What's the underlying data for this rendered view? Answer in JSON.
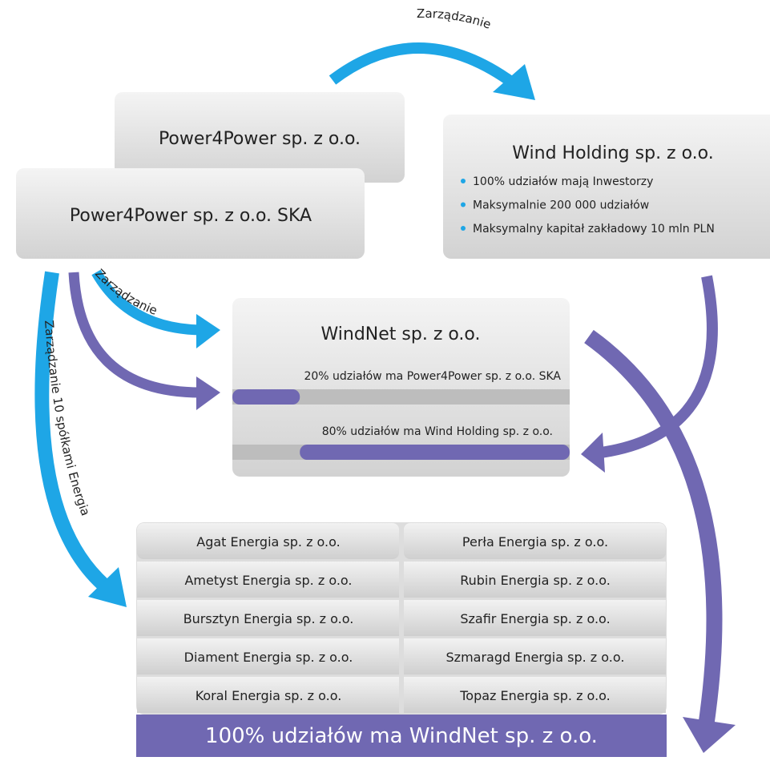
{
  "arrows": {
    "top": "Zarządzanie",
    "middle": "Zarządzanie",
    "left": "Zarządzanie 10 spółkami Energia"
  },
  "boxes": {
    "power4power": "Power4Power sp. z o.o.",
    "ska": "Power4Power sp. z o.o. SKA",
    "wind_holding": {
      "title": "Wind Holding sp. z o.o.",
      "bullets": [
        "100% udziałów mają Inwestorzy",
        "Maksymalnie 200 000 udziałów",
        "Maksymalny kapitał zakładowy 10 mln PLN"
      ]
    },
    "windnet": {
      "title": "WindNet sp. z o.o.",
      "shares": [
        {
          "label": "20% udziałów ma Power4Power sp. z o.o. SKA",
          "value": 20
        },
        {
          "label": "80% udziałów ma Wind Holding sp. z o.o.",
          "value": 80
        }
      ]
    }
  },
  "companies": {
    "left": [
      "Agat Energia sp. z o.o.",
      "Ametyst Energia sp. z o.o.",
      "Bursztyn Energia sp. z o.o.",
      "Diament Energia sp. z o.o.",
      "Koral Energia sp. z o.o."
    ],
    "right": [
      "Perła Energia sp. z o.o.",
      "Rubin Energia sp. z o.o.",
      "Szafir Energia sp. z o.o.",
      "Szmaragd Energia sp. z o.o.",
      "Topaz Energia sp. z o.o."
    ],
    "footer": "100% udziałów ma WindNet sp. z o.o."
  }
}
